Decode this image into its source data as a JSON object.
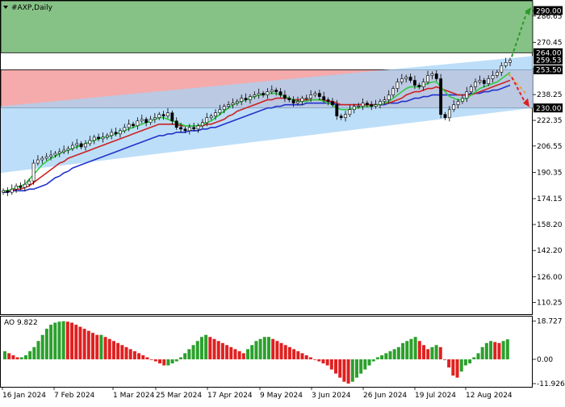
{
  "header": {
    "symbol_label": "#AXP,Daily",
    "menu_icon": "triangle-down-icon"
  },
  "colors": {
    "upper_zone": "#7fbf7f",
    "lower_zone": "#f4a6a6",
    "channel": "#a7d3f5",
    "ma_fast": "#2ecc40",
    "ma_mid": "#cc2222",
    "ma_slow": "#2233cc",
    "ao_up": "#2ca02c",
    "ao_down": "#e02020",
    "arrow_up": "#2a9a2a",
    "arrow_down": "#e02020",
    "candle": "#000000"
  },
  "chart_data": [
    {
      "type": "candlestick",
      "title": "#AXP,Daily",
      "x_labels": [
        "16 Jan 2024",
        "7 Feb 2024",
        "1 Mar 2024",
        "25 Mar 2024",
        "17 Apr 2024",
        "9 May 2024",
        "3 Jun 2024",
        "26 Jun 2024",
        "19 Jul 2024",
        "12 Aug 2024"
      ],
      "y_ticks": [
        290.0,
        286.65,
        270.45,
        254.25,
        238.25,
        222.35,
        206.55,
        190.35,
        174.15,
        158.2,
        142.2,
        126.0,
        110.25
      ],
      "ylim": [
        103.0,
        296.0
      ],
      "price_labels": [
        {
          "value": 290.0,
          "text": "290.00"
        },
        {
          "value": 264.0,
          "text": "264.00"
        },
        {
          "value": 259.53,
          "text": "259.53"
        },
        {
          "value": 253.5,
          "text": "253.50"
        },
        {
          "value": 230.0,
          "text": "230.00"
        }
      ],
      "zones": [
        {
          "name": "upper",
          "from": 264.0,
          "to": 296.0
        },
        {
          "name": "lower",
          "from": 230.0,
          "to": 253.5
        }
      ],
      "channel": {
        "upper_start": 231.0,
        "upper_end": 262.0,
        "lower_start": 190.0,
        "lower_end": 230.0
      },
      "close": [
        179,
        178,
        180,
        182,
        181,
        183,
        185,
        196,
        198,
        199,
        200,
        201,
        202,
        203,
        204,
        205,
        207,
        208,
        206,
        208,
        210,
        212,
        211,
        212,
        213,
        215,
        214,
        216,
        218,
        220,
        219,
        222,
        223,
        221,
        223,
        224,
        226,
        225,
        227,
        222,
        218,
        217,
        216,
        218,
        217,
        219,
        221,
        224,
        225,
        227,
        229,
        231,
        232,
        233,
        234,
        236,
        235,
        237,
        238,
        239,
        238,
        240,
        241,
        240,
        238,
        236,
        235,
        233,
        234,
        236,
        236,
        238,
        239,
        237,
        235,
        234,
        232,
        225,
        224,
        226,
        229,
        231,
        231,
        233,
        232,
        231,
        232,
        234,
        235,
        238,
        242,
        246,
        248,
        249,
        247,
        244,
        243,
        246,
        250,
        251,
        248,
        226,
        224,
        229,
        232,
        234,
        236,
        240,
        243,
        246,
        247,
        245,
        248,
        250,
        252,
        256,
        258,
        259.5
      ],
      "ma_fast": [
        179,
        179,
        180,
        181,
        182,
        183,
        186,
        189,
        192,
        195,
        197,
        199,
        200,
        202,
        203,
        204,
        205,
        206,
        207,
        208,
        209,
        210,
        211,
        212,
        212,
        213,
        214,
        215,
        216,
        217,
        218,
        219,
        220,
        221,
        222,
        223,
        224,
        224,
        223,
        222,
        221,
        220,
        219,
        219,
        219,
        219,
        220,
        221,
        222,
        224,
        226,
        228,
        230,
        232,
        233,
        234,
        235,
        236,
        237,
        238,
        238,
        239,
        239,
        239,
        238,
        237,
        236,
        235,
        234,
        234,
        234,
        235,
        235,
        235,
        234,
        233,
        232,
        230,
        229,
        229,
        229,
        230,
        230,
        231,
        231,
        231,
        232,
        232,
        233,
        234,
        236,
        238,
        240,
        242,
        243,
        243,
        243,
        244,
        245,
        246,
        246,
        243,
        240,
        237,
        236,
        235,
        235,
        236,
        238,
        240,
        242,
        243,
        244,
        245,
        246,
        248,
        250,
        252
      ],
      "ma_mid": [
        179,
        179,
        179,
        180,
        180,
        181,
        182,
        184,
        186,
        188,
        190,
        192,
        194,
        196,
        197,
        199,
        200,
        201,
        202,
        203,
        204,
        205,
        206,
        207,
        208,
        209,
        210,
        211,
        212,
        213,
        214,
        215,
        216,
        217,
        218,
        219,
        220,
        220,
        220,
        220,
        220,
        219,
        219,
        219,
        219,
        219,
        219,
        220,
        220,
        221,
        222,
        223,
        225,
        226,
        228,
        229,
        230,
        231,
        232,
        233,
        234,
        235,
        235,
        236,
        236,
        236,
        236,
        235,
        235,
        235,
        235,
        235,
        235,
        235,
        235,
        234,
        234,
        233,
        232,
        232,
        232,
        232,
        232,
        232,
        232,
        232,
        232,
        232,
        233,
        233,
        234,
        235,
        236,
        238,
        239,
        240,
        240,
        241,
        242,
        242,
        243,
        242,
        241,
        240,
        239,
        238,
        238,
        238,
        238,
        239,
        240,
        241,
        242,
        243,
        244,
        245,
        246,
        247
      ],
      "ma_slow": [
        178,
        178,
        179,
        179,
        179,
        179,
        180,
        180,
        181,
        182,
        183,
        185,
        187,
        188,
        190,
        191,
        193,
        194,
        195,
        196,
        197,
        198,
        199,
        200,
        201,
        202,
        203,
        204,
        205,
        206,
        207,
        208,
        209,
        210,
        211,
        212,
        213,
        213,
        214,
        214,
        215,
        215,
        215,
        216,
        216,
        216,
        217,
        217,
        218,
        218,
        219,
        220,
        221,
        222,
        223,
        224,
        225,
        226,
        227,
        228,
        229,
        230,
        230,
        231,
        231,
        232,
        232,
        232,
        232,
        232,
        233,
        233,
        233,
        233,
        233,
        233,
        233,
        232,
        232,
        232,
        232,
        232,
        232,
        232,
        232,
        232,
        232,
        232,
        232,
        233,
        233,
        233,
        234,
        234,
        235,
        236,
        236,
        237,
        237,
        238,
        238,
        238,
        238,
        238,
        238,
        238,
        238,
        238,
        239,
        239,
        239,
        240,
        240,
        241,
        241,
        242,
        243,
        244
      ],
      "ma_legend": []
    },
    {
      "type": "bar",
      "title": "AO 9.822",
      "indicator": "Awesome Oscillator",
      "current_value": 9.822,
      "y_ticks": [
        18.727,
        0.0,
        -11.926
      ],
      "y_tick_labels": [
        "18.727",
        "0.00",
        "-11.926"
      ],
      "ylim": [
        -13.5,
        21.0
      ],
      "values": [
        4,
        3,
        2,
        1,
        1,
        2,
        4,
        6,
        9,
        12,
        15,
        17,
        18,
        18.5,
        18.7,
        18.5,
        18,
        17,
        16,
        15,
        14,
        13,
        12,
        12,
        11,
        10,
        9,
        8,
        7,
        6,
        5,
        4,
        3,
        2,
        1,
        0,
        -1,
        -2,
        -3,
        -3,
        -2,
        -1,
        1,
        3,
        5,
        7,
        9,
        11,
        12,
        11,
        10,
        9,
        8,
        7,
        6,
        5,
        4,
        3,
        5,
        7,
        9,
        10,
        11,
        11,
        10,
        9,
        8,
        7,
        6,
        5,
        4,
        3,
        2,
        1,
        0,
        -1,
        -2,
        -3,
        -5,
        -7,
        -9,
        -11,
        -11.9,
        -11,
        -9,
        -7,
        -5,
        -3,
        -1,
        1,
        2,
        3,
        4,
        5,
        6,
        8,
        9,
        10,
        11,
        9,
        7,
        5,
        6,
        7,
        6,
        0,
        -4,
        -8,
        -9,
        -6,
        -3,
        -2,
        1,
        3,
        6,
        8,
        9,
        8.5,
        8,
        9,
        9.822
      ]
    }
  ]
}
